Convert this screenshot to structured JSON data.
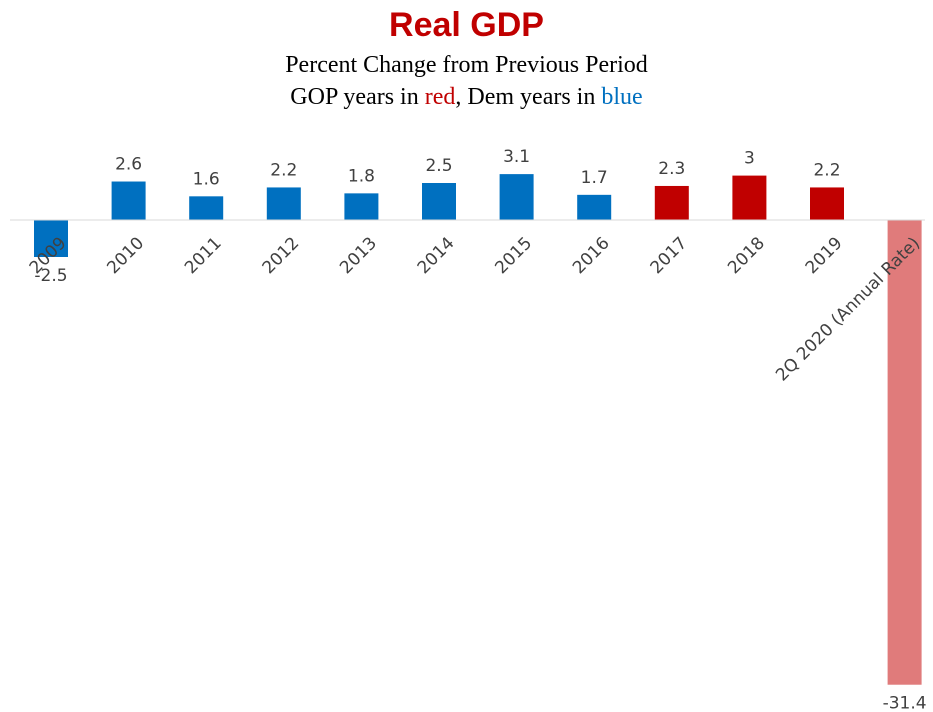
{
  "chart_data": {
    "type": "bar",
    "title": "Real GDP",
    "subtitle": "Percent Change from Previous Period",
    "subtitle2": {
      "part1": "GOP years in ",
      "red_word": "red",
      "part2": ", Dem years in ",
      "blue_word": "blue"
    },
    "xlabel": "",
    "ylabel": "",
    "categories": [
      "2009",
      "2010",
      "2011",
      "2012",
      "2013",
      "2014",
      "2015",
      "2016",
      "2017",
      "2018",
      "2019",
      "2Q 2020 (Annual Rate)"
    ],
    "values": [
      -2.5,
      2.6,
      1.6,
      2.2,
      1.8,
      2.5,
      3.1,
      1.7,
      2.3,
      3,
      2.2,
      -31.4
    ],
    "value_labels": [
      "-2.5",
      "2.6",
      "1.6",
      "2.2",
      "1.8",
      "2.5",
      "3.1",
      "1.7",
      "2.3",
      "3",
      "2.2",
      "-31.4"
    ],
    "party": [
      "dem",
      "dem",
      "dem",
      "dem",
      "dem",
      "dem",
      "dem",
      "dem",
      "gop",
      "gop",
      "gop",
      "gop-quarter"
    ],
    "colors": {
      "dem": "#0070C0",
      "gop": "#C00000",
      "gop-quarter": "#E07B7B",
      "title": "#C00000",
      "red_word": "#C00000",
      "blue_word": "#0070C0"
    },
    "grid": false,
    "legend": "none"
  }
}
